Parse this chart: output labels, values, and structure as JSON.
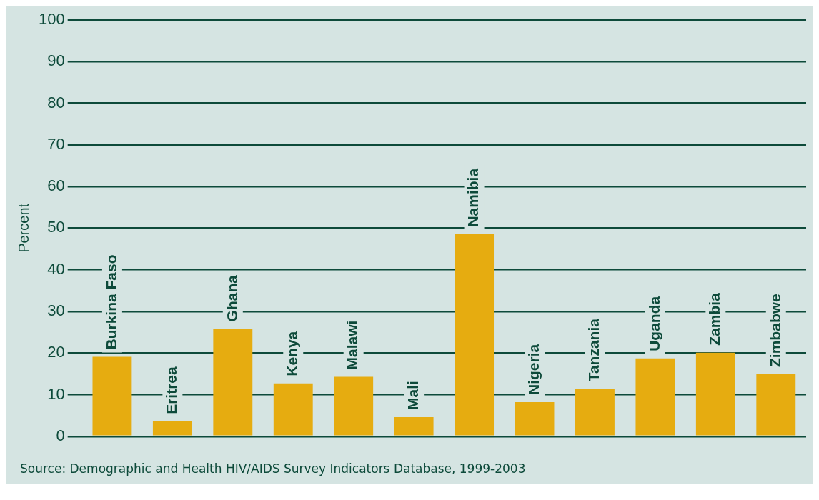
{
  "chart_data": {
    "type": "bar",
    "ylabel": "Percent",
    "categories": [
      "Burkina Faso",
      "Eritrea",
      "Ghana",
      "Kenya",
      "Malawi",
      "Mali",
      "Namibia",
      "Nigeria",
      "Tanzania",
      "Uganda",
      "Zambia",
      "Zimbabwe"
    ],
    "values": [
      19.1,
      3.6,
      25.8,
      12.7,
      14.3,
      4.6,
      48.6,
      8.2,
      11.4,
      18.7,
      20.1,
      14.9
    ],
    "color": "#e6ac10",
    "ylim": [
      0,
      100
    ],
    "yticks": [
      0,
      10,
      20,
      30,
      40,
      50,
      60,
      70,
      80,
      90,
      100
    ],
    "grid": "y",
    "legend": false,
    "annotations": [
      "Source: Demographic and Health HIV/AIDS Survey Indicators Database, 1999-2003"
    ]
  }
}
